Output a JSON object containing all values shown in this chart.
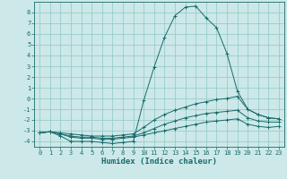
{
  "xlabel": "Humidex (Indice chaleur)",
  "bg_color": "#cce8e8",
  "grid_color": "#99cccc",
  "line_color": "#1a6b6b",
  "xlim": [
    -0.5,
    23.5
  ],
  "ylim": [
    -4.5,
    9.0
  ],
  "xticks": [
    0,
    1,
    2,
    3,
    4,
    5,
    6,
    7,
    8,
    9,
    10,
    11,
    12,
    13,
    14,
    15,
    16,
    17,
    18,
    19,
    20,
    21,
    22,
    23
  ],
  "yticks": [
    -4,
    -3,
    -2,
    -1,
    0,
    1,
    2,
    3,
    4,
    5,
    6,
    7,
    8
  ],
  "series": [
    {
      "x": [
        0,
        1,
        2,
        3,
        4,
        5,
        6,
        7,
        8,
        9,
        10,
        11,
        12,
        13,
        14,
        15,
        16,
        17,
        18,
        19,
        20,
        21,
        22,
        23
      ],
      "y": [
        -3.2,
        -3.1,
        -3.5,
        -4.0,
        -4.0,
        -4.0,
        -4.1,
        -4.2,
        -4.1,
        -4.0,
        -0.2,
        2.9,
        5.7,
        7.7,
        8.5,
        8.6,
        7.5,
        6.6,
        4.2,
        0.7,
        -1.0,
        -1.5,
        -1.8,
        -1.9
      ]
    },
    {
      "x": [
        0,
        1,
        2,
        3,
        4,
        5,
        6,
        7,
        8,
        9,
        10,
        11,
        12,
        13,
        14,
        15,
        16,
        17,
        18,
        19,
        20,
        21,
        22,
        23
      ],
      "y": [
        -3.2,
        -3.1,
        -3.2,
        -3.3,
        -3.4,
        -3.5,
        -3.5,
        -3.5,
        -3.4,
        -3.3,
        -2.7,
        -2.0,
        -1.5,
        -1.1,
        -0.8,
        -0.5,
        -0.3,
        -0.1,
        0.0,
        0.2,
        -1.0,
        -1.5,
        -1.8,
        -1.9
      ]
    },
    {
      "x": [
        0,
        1,
        2,
        3,
        4,
        5,
        6,
        7,
        8,
        9,
        10,
        11,
        12,
        13,
        14,
        15,
        16,
        17,
        18,
        19,
        20,
        21,
        22,
        23
      ],
      "y": [
        -3.2,
        -3.1,
        -3.3,
        -3.5,
        -3.6,
        -3.6,
        -3.7,
        -3.7,
        -3.6,
        -3.5,
        -3.2,
        -2.8,
        -2.4,
        -2.1,
        -1.8,
        -1.6,
        -1.4,
        -1.3,
        -1.2,
        -1.1,
        -1.8,
        -2.1,
        -2.2,
        -2.2
      ]
    },
    {
      "x": [
        0,
        1,
        2,
        3,
        4,
        5,
        6,
        7,
        8,
        9,
        10,
        11,
        12,
        13,
        14,
        15,
        16,
        17,
        18,
        19,
        20,
        21,
        22,
        23
      ],
      "y": [
        -3.2,
        -3.1,
        -3.3,
        -3.6,
        -3.7,
        -3.7,
        -3.8,
        -3.8,
        -3.7,
        -3.6,
        -3.4,
        -3.2,
        -3.0,
        -2.8,
        -2.6,
        -2.4,
        -2.2,
        -2.1,
        -2.0,
        -1.9,
        -2.4,
        -2.6,
        -2.7,
        -2.6
      ]
    }
  ]
}
